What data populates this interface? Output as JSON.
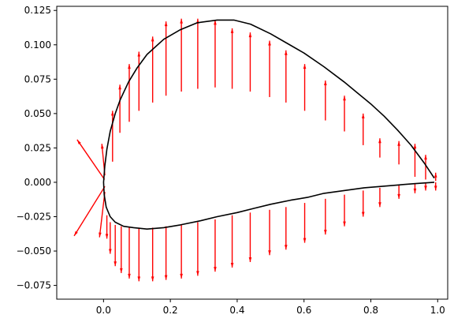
{
  "chart_data": {
    "type": "line",
    "title": "",
    "xlabel": "",
    "ylabel": "",
    "xlim": [
      -0.14,
      1.03
    ],
    "ylim": [
      -0.085,
      0.128
    ],
    "grid": false,
    "x_ticks": [
      0.0,
      0.2,
      0.4,
      0.6,
      0.8,
      1.0
    ],
    "x_tick_labels": [
      "0.0",
      "0.2",
      "0.4",
      "0.6",
      "0.8",
      "1.0"
    ],
    "y_ticks": [
      -0.075,
      -0.05,
      -0.025,
      0.0,
      0.025,
      0.05,
      0.075,
      0.1,
      0.125
    ],
    "y_tick_labels": [
      "−0.075",
      "−0.050",
      "−0.025",
      "0.000",
      "0.025",
      "0.050",
      "0.075",
      "0.100",
      "0.125"
    ],
    "series": [
      {
        "type": "line",
        "color": "#000000",
        "x": [
          0.99,
          0.96,
          0.92,
          0.88,
          0.84,
          0.8,
          0.76,
          0.72,
          0.66,
          0.6,
          0.55,
          0.5,
          0.44,
          0.39,
          0.34,
          0.28,
          0.23,
          0.18,
          0.13,
          0.1,
          0.075,
          0.05,
          0.035,
          0.02,
          0.01,
          0.004,
          0.0,
          0.002,
          0.008,
          0.02,
          0.035,
          0.06,
          0.09,
          0.13,
          0.18,
          0.23,
          0.29,
          0.34,
          0.4,
          0.45,
          0.5,
          0.56,
          0.61,
          0.66,
          0.72,
          0.78,
          0.83,
          0.88,
          0.93,
          0.96,
          0.99
        ],
        "y": [
          0.003,
          0.014,
          0.027,
          0.038,
          0.048,
          0.057,
          0.065,
          0.073,
          0.084,
          0.094,
          0.101,
          0.108,
          0.115,
          0.118,
          0.118,
          0.116,
          0.111,
          0.104,
          0.093,
          0.083,
          0.073,
          0.06,
          0.05,
          0.037,
          0.024,
          0.012,
          0.0,
          -0.009,
          -0.018,
          -0.025,
          -0.029,
          -0.032,
          -0.033,
          -0.034,
          -0.033,
          -0.031,
          -0.028,
          -0.025,
          -0.022,
          -0.019,
          -0.016,
          -0.013,
          -0.011,
          -0.008,
          -0.006,
          -0.004,
          -0.003,
          -0.002,
          -0.001,
          -0.0005,
          0.0
        ]
      }
    ],
    "vectors": {
      "color": "#ff0000",
      "vertical": [
        {
          "x": 0.027,
          "y1": 0.015,
          "y2": 0.052
        },
        {
          "x": 0.049,
          "y1": 0.036,
          "y2": 0.071
        },
        {
          "x": 0.077,
          "y1": 0.044,
          "y2": 0.086
        },
        {
          "x": 0.106,
          "y1": 0.052,
          "y2": 0.095
        },
        {
          "x": 0.147,
          "y1": 0.058,
          "y2": 0.106
        },
        {
          "x": 0.187,
          "y1": 0.063,
          "y2": 0.117
        },
        {
          "x": 0.233,
          "y1": 0.066,
          "y2": 0.119
        },
        {
          "x": 0.282,
          "y1": 0.068,
          "y2": 0.119
        },
        {
          "x": 0.334,
          "y1": 0.069,
          "y2": 0.118
        },
        {
          "x": 0.385,
          "y1": 0.068,
          "y2": 0.112
        },
        {
          "x": 0.439,
          "y1": 0.066,
          "y2": 0.109
        },
        {
          "x": 0.497,
          "y1": 0.062,
          "y2": 0.103
        },
        {
          "x": 0.546,
          "y1": 0.058,
          "y2": 0.096
        },
        {
          "x": 0.602,
          "y1": 0.052,
          "y2": 0.086
        },
        {
          "x": 0.664,
          "y1": 0.045,
          "y2": 0.074
        },
        {
          "x": 0.721,
          "y1": 0.037,
          "y2": 0.063
        },
        {
          "x": 0.777,
          "y1": 0.027,
          "y2": 0.05
        },
        {
          "x": 0.827,
          "y1": 0.018,
          "y2": 0.032
        },
        {
          "x": 0.884,
          "y1": 0.013,
          "y2": 0.03
        },
        {
          "x": 0.932,
          "y1": 0.004,
          "y2": 0.028
        },
        {
          "x": 0.964,
          "y1": 0.002,
          "y2": 0.02
        },
        {
          "x": 0.994,
          "y1": 0.001,
          "y2": 0.007
        },
        {
          "x": 0.01,
          "y1": -0.024,
          "y2": -0.041
        },
        {
          "x": 0.02,
          "y1": -0.029,
          "y2": -0.052
        },
        {
          "x": 0.035,
          "y1": -0.031,
          "y2": -0.061
        },
        {
          "x": 0.053,
          "y1": -0.032,
          "y2": -0.066
        },
        {
          "x": 0.077,
          "y1": -0.033,
          "y2": -0.07
        },
        {
          "x": 0.106,
          "y1": -0.033,
          "y2": -0.072
        },
        {
          "x": 0.147,
          "y1": -0.033,
          "y2": -0.072
        },
        {
          "x": 0.187,
          "y1": -0.032,
          "y2": -0.071
        },
        {
          "x": 0.233,
          "y1": -0.031,
          "y2": -0.07
        },
        {
          "x": 0.282,
          "y1": -0.029,
          "y2": -0.068
        },
        {
          "x": 0.334,
          "y1": -0.027,
          "y2": -0.065
        },
        {
          "x": 0.385,
          "y1": -0.024,
          "y2": -0.062
        },
        {
          "x": 0.439,
          "y1": -0.022,
          "y2": -0.058
        },
        {
          "x": 0.497,
          "y1": -0.02,
          "y2": -0.053
        },
        {
          "x": 0.546,
          "y1": -0.018,
          "y2": -0.049
        },
        {
          "x": 0.602,
          "y1": -0.015,
          "y2": -0.044
        },
        {
          "x": 0.664,
          "y1": -0.012,
          "y2": -0.038
        },
        {
          "x": 0.721,
          "y1": -0.009,
          "y2": -0.032
        },
        {
          "x": 0.777,
          "y1": -0.006,
          "y2": -0.025
        },
        {
          "x": 0.827,
          "y1": -0.004,
          "y2": -0.018
        },
        {
          "x": 0.884,
          "y1": -0.002,
          "y2": -0.012
        },
        {
          "x": 0.932,
          "y1": -0.001,
          "y2": -0.008
        },
        {
          "x": 0.964,
          "y1": 0.0,
          "y2": -0.006
        },
        {
          "x": 0.994,
          "y1": 0.0,
          "y2": -0.006
        }
      ],
      "diagonal": [
        {
          "x1": 0.003,
          "y1": 0.002,
          "x2": -0.079,
          "y2": 0.031
        },
        {
          "x1": 0.004,
          "y1": -0.003,
          "x2": -0.088,
          "y2": -0.039
        },
        {
          "x1": 0.004,
          "y1": 0.005,
          "x2": -0.005,
          "y2": 0.028
        },
        {
          "x1": 0.004,
          "y1": -0.007,
          "x2": -0.012,
          "y2": -0.04
        }
      ]
    }
  }
}
